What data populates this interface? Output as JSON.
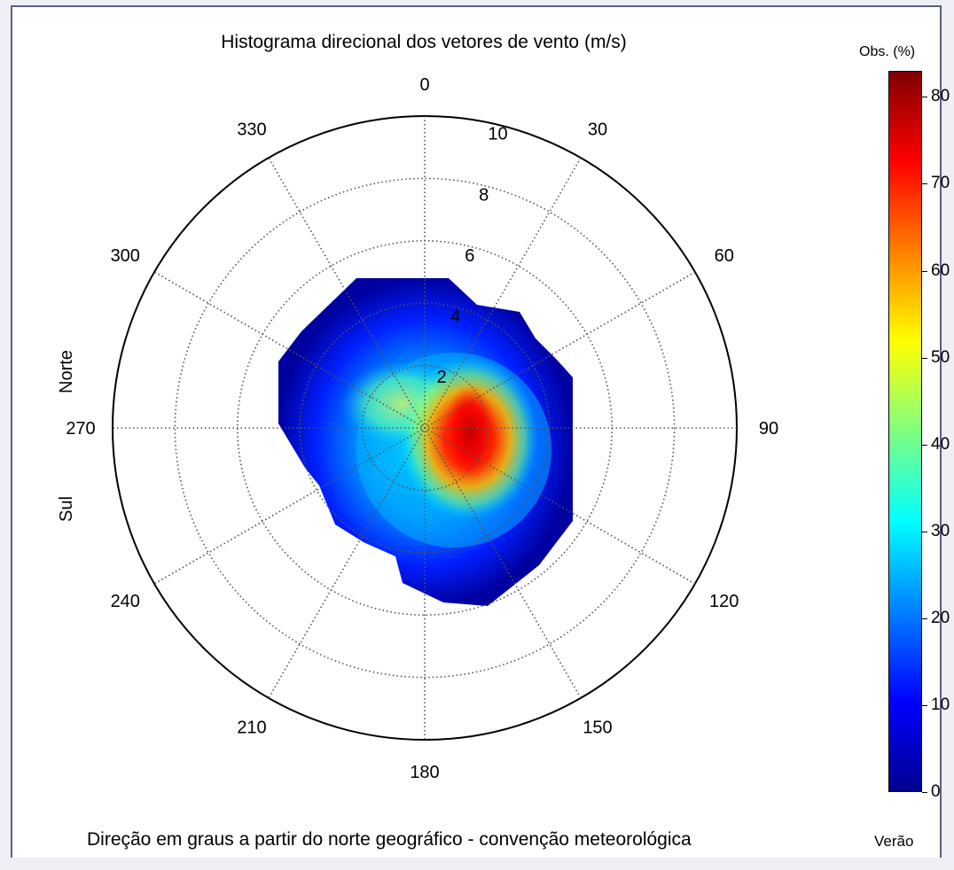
{
  "chart_data": {
    "type": "heatmap",
    "title": "Histograma direcional dos vetores de vento (m/s)",
    "xlabel": "Direção em graus a partir do norte geográfico - convenção meteorológica",
    "side_labels": {
      "top": "Norte",
      "bottom": "Sul"
    },
    "angle_ticks": [
      "0",
      "30",
      "60",
      "90",
      "120",
      "150",
      "180",
      "210",
      "240",
      "270",
      "300",
      "330"
    ],
    "radial_ticks": [
      "2",
      "4",
      "6",
      "8",
      "10"
    ],
    "radial_max": 10,
    "colorbar": {
      "title": "Obs. (%)",
      "range": [
        0,
        83
      ],
      "ticks": [
        "0",
        "10",
        "20",
        "30",
        "40",
        "50",
        "60",
        "70",
        "80"
      ],
      "colormap": "jet",
      "footer": "Verão"
    },
    "hotspots": [
      {
        "direction_deg": 115,
        "speed": 1.8,
        "value": 80
      },
      {
        "direction_deg": 70,
        "speed": 1.2,
        "value": 72
      },
      {
        "direction_deg": 295,
        "speed": 1.3,
        "value": 48
      }
    ],
    "grid": true
  },
  "colors": {
    "frame_border": "#5a5f86",
    "grid": "#555555"
  }
}
